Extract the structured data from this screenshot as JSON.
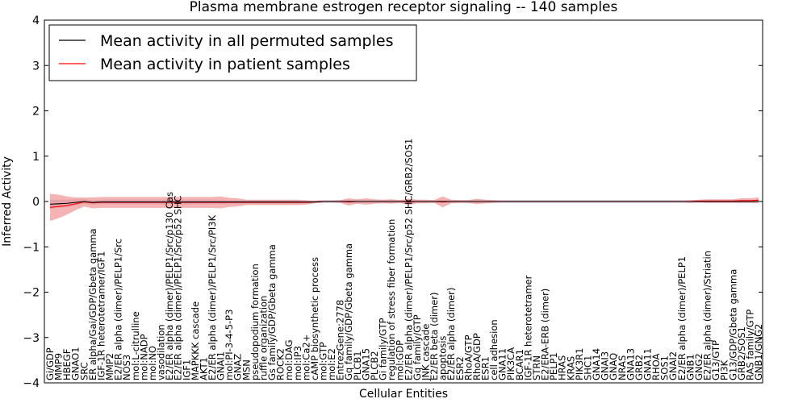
{
  "chart_data": {
    "type": "line",
    "title": "Plasma membrane estrogen receptor signaling -- 140 samples",
    "xlabel": "Cellular Entities",
    "ylabel": "Inferred Activity",
    "ylim": [
      -4,
      4
    ],
    "yticks": [
      "−4",
      "−3",
      "−2",
      "−1",
      "0",
      "1",
      "2",
      "3",
      "4"
    ],
    "grid": false,
    "legend_position": "top-left",
    "colors": {
      "permuted": "#000000",
      "patient": "#ff0000",
      "patient_band": "#f08080",
      "permuted_band": "#b0b0c8"
    },
    "series": [
      {
        "name": "Mean activity in all permuted samples",
        "color": "#000000"
      },
      {
        "name": "Mean activity in patient samples",
        "color": "#ff0000"
      }
    ],
    "categories": [
      "Gi/GDP",
      "MMP9",
      "HBEGF",
      "GNAO1",
      "SRC",
      "ER alpha/Gai/GDP/Gbeta gamma",
      "IGF-1R heterotetramer/IGF1",
      "MMP2",
      "E2/ER alpha (dimer)/PELP1/Src",
      "NOS3",
      "mol:L-citrulline",
      "mol:NADP",
      "mol:NO",
      "vasodilation",
      "E2/ER alpha (dimer)/PELP1/Src/p130 Cas",
      "E2/ER alpha (dimer)/PELP1/Src/p52 SHC",
      "IGF1",
      "MAPKKK cascade",
      "AKT1",
      "E2/ER alpha (dimer)/PELP1/Src/PI3K",
      "GNAI1",
      "mol:PI-3-4-5-P3",
      "GNAZ",
      "MSN",
      "pseudopodium formation",
      "ruffle organization",
      "Gs family/GDP/Gbeta gamma",
      "ROCK2",
      "mol:DAG",
      "mol:IP3",
      "mol:Ca2+",
      "cAMP biosynthetic process",
      "mol:GTP",
      "mol:E2",
      "EntrezGene:2778",
      "Gq family/GDP/Gbeta gamma",
      "PLCB1",
      "GNA15",
      "PLCB2",
      "Gi family/GTP",
      "regulation of stress fiber formation",
      "mol:GDP",
      "E2/ER alpha (dimer)/PELP1/Src/p52 SHC/GRB2/SOS1",
      "Gq family/GTP",
      "JNK cascade",
      "E2/ER beta (dimer)",
      "apoptosis",
      "E2/ER alpha (dimer)",
      "ESR2",
      "RhoA/GTP",
      "RhoA/GDP",
      "ESR1",
      "cell adhesion",
      "GNA11",
      "PIK3CA",
      "BCAR1",
      "IGF-1R heterotetramer",
      "STRN",
      "E2/ERA-ERB (dimer)",
      "PELP1",
      "HRAS",
      "KRAS",
      "PIK3R1",
      "SHC1",
      "GNA14",
      "GNAI3",
      "GNAQ",
      "NRAS",
      "GNA13",
      "GRB2",
      "GNA11",
      "RHOA",
      "SOS1",
      "GNAI2",
      "E2/ER alpha (dimer)/PELP1",
      "GNB1",
      "GNG2",
      "E2/ER alpha (dimer)/Striatin",
      "G13/GTP",
      "PI3K",
      "G13/GDP/Gbeta gamma",
      "GRB2/SOS1",
      "RAS family/GTP",
      "GNB1/GNG2"
    ],
    "permuted_mean": [
      -0.06,
      -0.05,
      -0.04,
      -0.02,
      0.0,
      -0.02,
      -0.01,
      -0.01,
      -0.01,
      -0.01,
      -0.01,
      -0.01,
      -0.01,
      -0.01,
      -0.01,
      -0.01,
      -0.01,
      -0.01,
      -0.01,
      -0.01,
      -0.01,
      -0.01,
      -0.01,
      -0.01,
      -0.01,
      -0.01,
      -0.01,
      -0.01,
      -0.01,
      -0.01,
      -0.01,
      -0.01,
      0.0,
      0.0,
      0.0,
      0.0,
      0.0,
      0.0,
      0.0,
      0.0,
      0.0,
      0.0,
      0.0,
      0.0,
      0.0,
      0.0,
      0.0,
      0.0,
      0.0,
      0.0,
      0.0,
      0.0,
      0.0,
      0.0,
      0.0,
      0.0,
      0.0,
      0.0,
      0.0,
      0.0,
      0.0,
      0.0,
      0.0,
      0.0,
      0.0,
      0.0,
      0.0,
      0.0,
      0.0,
      0.0,
      0.0,
      0.0,
      0.0,
      0.0,
      0.0,
      0.0,
      0.0,
      0.0,
      0.0,
      0.0,
      0.0,
      0.0,
      0.0,
      0.0
    ],
    "patient_mean": [
      -0.13,
      -0.11,
      -0.09,
      -0.05,
      -0.01,
      -0.03,
      -0.02,
      -0.02,
      -0.02,
      -0.02,
      -0.02,
      -0.02,
      -0.02,
      -0.02,
      -0.02,
      -0.02,
      -0.02,
      -0.02,
      -0.02,
      -0.02,
      -0.02,
      -0.02,
      -0.02,
      -0.02,
      -0.02,
      -0.02,
      -0.02,
      -0.02,
      -0.02,
      -0.02,
      -0.02,
      -0.01,
      0.0,
      0.0,
      0.0,
      -0.01,
      0.0,
      0.0,
      0.0,
      0.0,
      0.0,
      0.0,
      -0.01,
      0.0,
      0.0,
      0.0,
      -0.01,
      0.0,
      0.0,
      0.0,
      0.0,
      0.0,
      0.0,
      0.0,
      0.0,
      0.0,
      0.0,
      0.0,
      0.0,
      0.0,
      0.0,
      0.0,
      0.0,
      0.0,
      0.0,
      0.0,
      0.0,
      0.0,
      0.0,
      0.0,
      0.0,
      0.0,
      0.0,
      0.0,
      0.0,
      0.0,
      0.01,
      0.01,
      0.01,
      0.01,
      0.01,
      0.02,
      0.02,
      0.03
    ],
    "patient_band": [
      0.3,
      0.26,
      0.2,
      0.14,
      0.1,
      0.12,
      0.12,
      0.12,
      0.12,
      0.12,
      0.12,
      0.12,
      0.12,
      0.12,
      0.12,
      0.12,
      0.12,
      0.12,
      0.12,
      0.12,
      0.13,
      0.1,
      0.09,
      0.06,
      0.06,
      0.06,
      0.06,
      0.06,
      0.06,
      0.06,
      0.05,
      0.03,
      0.02,
      0.02,
      0.03,
      0.08,
      0.05,
      0.07,
      0.05,
      0.04,
      0.05,
      0.03,
      0.07,
      0.04,
      0.04,
      0.03,
      0.12,
      0.04,
      0.03,
      0.03,
      0.06,
      0.04,
      0.03,
      0.02,
      0.02,
      0.02,
      0.02,
      0.02,
      0.02,
      0.02,
      0.02,
      0.02,
      0.02,
      0.02,
      0.02,
      0.02,
      0.02,
      0.02,
      0.02,
      0.02,
      0.02,
      0.02,
      0.02,
      0.02,
      0.02,
      0.03,
      0.03,
      0.04,
      0.04,
      0.04,
      0.04,
      0.05,
      0.05,
      0.06
    ],
    "permuted_band": [
      0.1,
      0.09,
      0.08,
      0.07,
      0.05,
      0.05,
      0.05,
      0.05,
      0.05,
      0.05,
      0.05,
      0.05,
      0.05,
      0.05,
      0.05,
      0.05,
      0.05,
      0.05,
      0.05,
      0.05,
      0.05,
      0.04,
      0.04,
      0.04,
      0.04,
      0.04,
      0.04,
      0.04,
      0.04,
      0.04,
      0.03,
      0.03,
      0.03,
      0.03,
      0.03,
      0.03,
      0.03,
      0.03,
      0.03,
      0.03,
      0.03,
      0.03,
      0.03,
      0.03,
      0.03,
      0.03,
      0.03,
      0.03,
      0.03,
      0.03,
      0.03,
      0.03,
      0.03,
      0.03,
      0.03,
      0.03,
      0.03,
      0.03,
      0.03,
      0.03,
      0.03,
      0.03,
      0.03,
      0.03,
      0.03,
      0.03,
      0.03,
      0.03,
      0.03,
      0.03,
      0.03,
      0.03,
      0.03,
      0.03,
      0.03,
      0.03,
      0.03,
      0.03,
      0.03,
      0.03,
      0.03,
      0.03,
      0.03,
      0.03
    ]
  }
}
